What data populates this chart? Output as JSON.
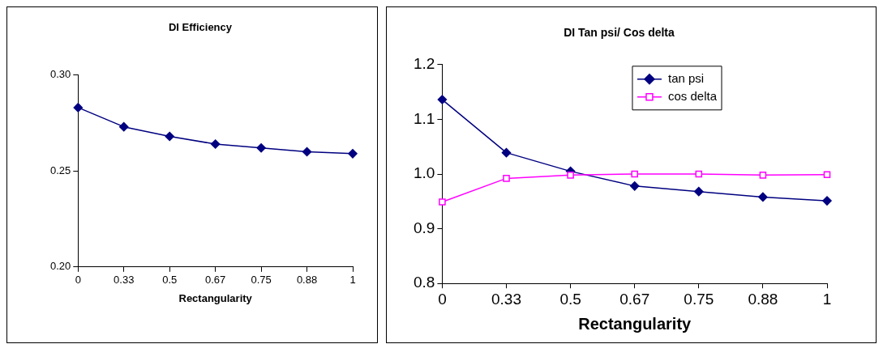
{
  "chart_data": [
    {
      "type": "line",
      "title": "DI Efficiency",
      "xlabel": "Rectangularity",
      "categories": [
        "0",
        "0.33",
        "0.5",
        "0.67",
        "0.75",
        "0.88",
        "1"
      ],
      "series": [
        {
          "color": "#000080",
          "marker": "diamond",
          "values": [
            0.283,
            0.273,
            0.268,
            0.264,
            0.262,
            0.26,
            0.259
          ]
        }
      ],
      "ylim": [
        0.2,
        0.3
      ],
      "yticks": [
        {
          "value": 0.2,
          "label": "0.20"
        },
        {
          "value": 0.25,
          "label": "0.25"
        },
        {
          "value": 0.3,
          "label": "0.30"
        }
      ],
      "grid": false,
      "legend": false
    },
    {
      "type": "line",
      "title": "DI Tan psi/ Cos delta",
      "xlabel": "Rectangularity",
      "categories": [
        "0",
        "0.33",
        "0.5",
        "0.67",
        "0.75",
        "0.88",
        "1"
      ],
      "series": [
        {
          "name": "tan psi",
          "color": "#000080",
          "marker": "diamond",
          "values": [
            1.136,
            1.039,
            1.005,
            0.978,
            0.968,
            0.958,
            0.951
          ]
        },
        {
          "name": "cos delta",
          "color": "#ff00ff",
          "marker": "square",
          "values": [
            0.949,
            0.992,
            0.998,
            1.0,
            1.0,
            0.998,
            0.999
          ]
        }
      ],
      "ylim": [
        0.8,
        1.2
      ],
      "yticks": [
        0.8,
        0.9,
        {
          "value": 1,
          "label": "1.0"
        },
        1.1,
        1.2
      ],
      "grid": false,
      "legend": "top right"
    }
  ]
}
